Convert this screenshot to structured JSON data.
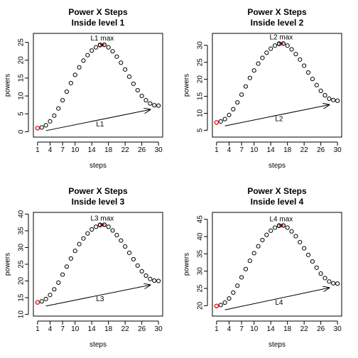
{
  "chart_data": [
    {
      "type": "scatter",
      "title": "Power X Steps",
      "subtitle": "Inside level 1",
      "xlabel": "steps",
      "ylabel": "powers",
      "x": [
        1,
        2,
        3,
        4,
        5,
        6,
        7,
        8,
        9,
        10,
        11,
        12,
        13,
        14,
        15,
        16,
        17,
        18,
        19,
        20,
        21,
        22,
        23,
        24,
        25,
        26,
        27,
        28,
        29,
        30
      ],
      "y": [
        1.0,
        1.2,
        1.8,
        2.9,
        4.5,
        6.5,
        8.8,
        11.2,
        13.6,
        15.9,
        18.0,
        19.9,
        21.4,
        22.7,
        23.6,
        24.2,
        24.3,
        23.6,
        22.5,
        21.0,
        19.3,
        17.4,
        15.4,
        13.4,
        11.6,
        10.0,
        8.8,
        7.9,
        7.4,
        7.3
      ],
      "xlim": [
        0,
        31
      ],
      "ylim": [
        -1.5,
        27.5
      ],
      "xticks": [
        1,
        4,
        7,
        10,
        14,
        18,
        22,
        26,
        30
      ],
      "yticks": [
        0,
        5,
        10,
        15,
        20,
        25
      ],
      "highlight_min": {
        "x": 1,
        "y": 1.0,
        "color": "#e8201c"
      },
      "highlight_max": {
        "x_from": 16,
        "x_to": 17,
        "y": 24.3,
        "label": "L1 max",
        "color": "#e8201c"
      },
      "arrow": {
        "x_from": 3,
        "y_from": 0.3,
        "x_to": 28,
        "y_to": 6.2,
        "label": "L1",
        "label_x": 16,
        "label_y": 2.0
      }
    },
    {
      "type": "scatter",
      "title": "Power X Steps",
      "subtitle": "Inside level 2",
      "xlabel": "steps",
      "ylabel": "powers",
      "x": [
        1,
        2,
        3,
        4,
        5,
        6,
        7,
        8,
        9,
        10,
        11,
        12,
        13,
        14,
        15,
        16,
        17,
        18,
        19,
        20,
        21,
        22,
        23,
        24,
        25,
        26,
        27,
        28,
        29,
        30
      ],
      "y": [
        7.3,
        7.6,
        8.3,
        9.5,
        11.2,
        13.2,
        15.5,
        17.9,
        20.4,
        22.6,
        24.6,
        26.3,
        27.8,
        29.0,
        29.9,
        30.4,
        30.5,
        29.9,
        28.8,
        27.4,
        25.8,
        24.0,
        22.0,
        20.1,
        18.3,
        16.6,
        15.3,
        14.3,
        13.9,
        13.7
      ],
      "xlim": [
        0,
        31
      ],
      "ylim": [
        3.0,
        33.5
      ],
      "xticks": [
        1,
        4,
        7,
        10,
        14,
        18,
        22,
        26,
        30
      ],
      "yticks": [
        5,
        10,
        15,
        20,
        25,
        30
      ],
      "highlight_min": {
        "x": 1,
        "y": 7.3,
        "color": "#e8201c"
      },
      "highlight_max": {
        "x_from": 16,
        "x_to": 17,
        "y": 30.5,
        "label": "L2 max",
        "color": "#e8201c"
      },
      "arrow": {
        "x_from": 3,
        "y_from": 6.3,
        "x_to": 28,
        "y_to": 12.5,
        "label": "L2",
        "label_x": 16,
        "label_y": 8.2
      }
    },
    {
      "type": "scatter",
      "title": "Power X Steps",
      "subtitle": "Inside level 3",
      "xlabel": "steps",
      "ylabel": "powers",
      "x": [
        1,
        2,
        3,
        4,
        5,
        6,
        7,
        8,
        9,
        10,
        11,
        12,
        13,
        14,
        15,
        16,
        17,
        18,
        19,
        20,
        21,
        22,
        23,
        24,
        25,
        26,
        27,
        28,
        29,
        30
      ],
      "y": [
        13.6,
        13.9,
        14.6,
        15.8,
        17.5,
        19.5,
        21.9,
        24.3,
        26.7,
        29.0,
        31.0,
        32.7,
        34.2,
        35.4,
        36.2,
        36.7,
        36.8,
        36.2,
        35.1,
        33.7,
        32.1,
        30.3,
        28.4,
        26.5,
        24.6,
        22.9,
        21.6,
        20.6,
        20.1,
        20.0
      ],
      "xlim": [
        0,
        31
      ],
      "ylim": [
        9.5,
        40.5
      ],
      "xticks": [
        1,
        4,
        7,
        10,
        14,
        18,
        22,
        26,
        30
      ],
      "yticks": [
        10,
        15,
        20,
        25,
        30,
        35,
        40
      ],
      "highlight_min": {
        "x": 1,
        "y": 13.6,
        "color": "#e8201c"
      },
      "highlight_max": {
        "x_from": 16,
        "x_to": 17,
        "y": 36.8,
        "label": "L3 max",
        "color": "#e8201c"
      },
      "arrow": {
        "x_from": 3,
        "y_from": 12.5,
        "x_to": 28,
        "y_to": 18.8,
        "label": "L3",
        "label_x": 16,
        "label_y": 14.5
      }
    },
    {
      "type": "scatter",
      "title": "Power X Steps",
      "subtitle": "Inside level 4",
      "xlabel": "steps",
      "ylabel": "powers",
      "x": [
        1,
        2,
        3,
        4,
        5,
        6,
        7,
        8,
        9,
        10,
        11,
        12,
        13,
        14,
        15,
        16,
        17,
        18,
        19,
        20,
        21,
        22,
        23,
        24,
        25,
        26,
        27,
        28,
        29,
        30
      ],
      "y": [
        19.9,
        20.2,
        20.9,
        22.1,
        23.8,
        25.8,
        28.2,
        30.6,
        33.0,
        35.2,
        37.2,
        39.0,
        40.5,
        41.7,
        42.6,
        43.1,
        43.2,
        42.6,
        41.5,
        40.1,
        38.4,
        36.6,
        34.7,
        32.8,
        31.0,
        29.3,
        28.0,
        27.0,
        26.5,
        26.4
      ],
      "xlim": [
        0,
        31
      ],
      "ylim": [
        17.0,
        47.0
      ],
      "xticks": [
        1,
        4,
        7,
        10,
        14,
        18,
        22,
        26,
        30
      ],
      "yticks": [
        20,
        25,
        30,
        35,
        40,
        45
      ],
      "highlight_min": {
        "x": 1,
        "y": 19.9,
        "color": "#e8201c"
      },
      "highlight_max": {
        "x_from": 16,
        "x_to": 17,
        "y": 43.2,
        "label": "L4 max",
        "color": "#e8201c"
      },
      "arrow": {
        "x_from": 3,
        "y_from": 18.8,
        "x_to": 28,
        "y_to": 25.2,
        "label": "L4",
        "label_x": 16,
        "label_y": 20.8
      }
    }
  ]
}
